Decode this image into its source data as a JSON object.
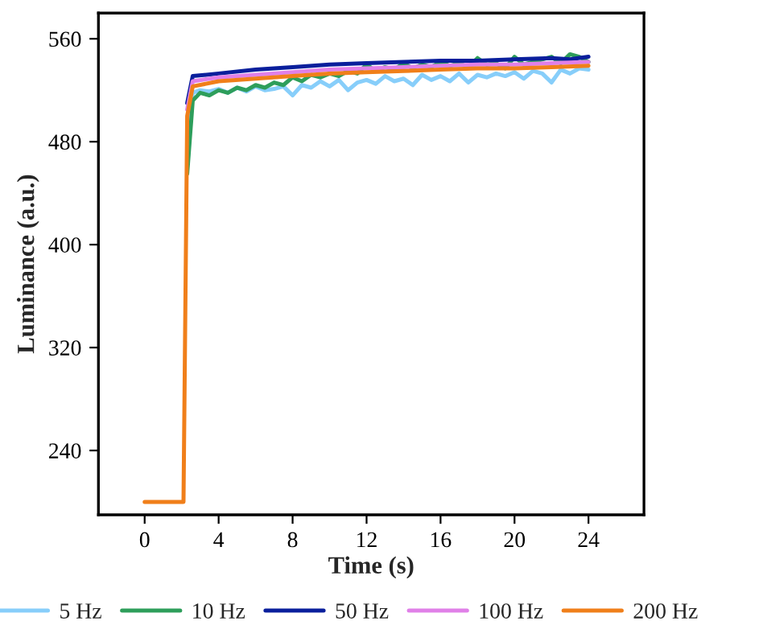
{
  "chart_data": {
    "type": "line",
    "xlabel": "Time (s)",
    "ylabel": "Luminance (a.u.)",
    "xlim": [
      -2.5,
      27
    ],
    "ylim": [
      190,
      580
    ],
    "xticks": [
      0,
      4,
      8,
      12,
      16,
      20,
      24
    ],
    "yticks": [
      240,
      320,
      400,
      480,
      560
    ],
    "grid": false,
    "legend": "bottom",
    "marker": "none",
    "line_style": "solid",
    "series": [
      {
        "name": "5 Hz",
        "color": "#87cefa",
        "x": [
          2.3,
          2.6,
          3,
          3.5,
          4,
          4.5,
          5,
          5.5,
          6,
          6.5,
          7,
          7.5,
          8,
          8.5,
          9,
          9.5,
          10,
          10.5,
          11,
          11.5,
          12,
          12.5,
          13,
          13.5,
          14,
          14.5,
          15,
          15.5,
          16,
          16.5,
          17,
          17.5,
          18,
          18.5,
          19,
          19.5,
          20,
          20.5,
          21,
          21.5,
          22,
          22.5,
          23,
          23.5,
          24
        ],
        "values": [
          460,
          518,
          520,
          519,
          521,
          518,
          522,
          519,
          523,
          520,
          521,
          523,
          516,
          524,
          522,
          527,
          523,
          528,
          520,
          526,
          528,
          525,
          531,
          527,
          529,
          524,
          532,
          528,
          531,
          527,
          533,
          526,
          532,
          530,
          533,
          531,
          534,
          529,
          535,
          533,
          526,
          536,
          533,
          537,
          536
        ]
      },
      {
        "name": "10 Hz",
        "color": "#2e9e5b",
        "x": [
          2.3,
          2.6,
          3,
          3.5,
          4,
          4.5,
          5,
          5.5,
          6,
          6.5,
          7,
          7.5,
          8,
          8.5,
          9,
          9.5,
          10,
          10.5,
          11,
          11.5,
          12,
          12.5,
          13,
          13.5,
          14,
          14.5,
          15,
          15.5,
          16,
          16.5,
          17,
          17.5,
          18,
          18.5,
          19,
          19.5,
          20,
          20.5,
          21,
          21.5,
          22,
          22.5,
          23,
          23.5,
          24
        ],
        "values": [
          455,
          512,
          518,
          516,
          520,
          518,
          522,
          520,
          524,
          522,
          526,
          524,
          530,
          527,
          532,
          530,
          533,
          531,
          535,
          533,
          540,
          535,
          538,
          536,
          541,
          537,
          540,
          538,
          542,
          539,
          541,
          538,
          545,
          540,
          541,
          537,
          546,
          540,
          542,
          544,
          546,
          541,
          548,
          546,
          542
        ]
      },
      {
        "name": "50 Hz",
        "color": "#0a1f9c",
        "x": [
          2.3,
          2.6,
          4,
          6,
          8,
          10,
          12,
          14,
          16,
          18,
          20,
          22,
          23,
          24
        ],
        "values": [
          510,
          531,
          533,
          536,
          538,
          540,
          541,
          542,
          543,
          543,
          544,
          545,
          544,
          546
        ]
      },
      {
        "name": "100 Hz",
        "color": "#e080e8",
        "x": [
          2.3,
          2.6,
          4,
          6,
          8,
          10,
          12,
          14,
          16,
          18,
          20,
          22,
          24
        ],
        "values": [
          505,
          527,
          530,
          532,
          534,
          536,
          537,
          538,
          539,
          540,
          540,
          541,
          542
        ]
      },
      {
        "name": "200 Hz",
        "color": "#f07f1a",
        "x": [
          0,
          2.1,
          2.3,
          2.6,
          4,
          6,
          8,
          10,
          12,
          14,
          16,
          18,
          20,
          22,
          24
        ],
        "values": [
          200,
          200,
          500,
          523,
          527,
          529,
          531,
          533,
          534,
          535,
          536,
          537,
          537,
          538,
          539
        ]
      }
    ]
  }
}
